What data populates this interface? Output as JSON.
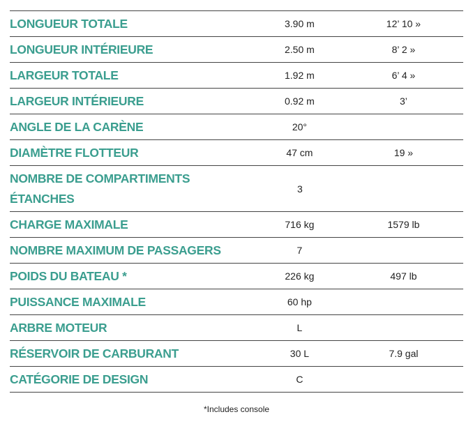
{
  "rows": [
    {
      "label": "LONGUEUR TOTALE",
      "metric": "3.90 m",
      "imperial": "12’ 10 »"
    },
    {
      "label": "LONGUEUR INTÉRIEURE",
      "metric": "2.50 m",
      "imperial": "8’ 2 »"
    },
    {
      "label": "LARGEUR TOTALE",
      "metric": "1.92 m",
      "imperial": "6’ 4 »"
    },
    {
      "label": "LARGEUR INTÉRIEURE",
      "metric": "0.92 m",
      "imperial": "3’"
    },
    {
      "label": "ANGLE DE LA CARÈNE",
      "metric": "20°",
      "imperial": ""
    },
    {
      "label": "DIAMÈTRE FLOTTEUR",
      "metric": "47 cm",
      "imperial": "19 »"
    },
    {
      "label": "NOMBRE DE COMPARTIMENTS ÉTANCHES",
      "metric": "3",
      "imperial": ""
    },
    {
      "label": "CHARGE MAXIMALE",
      "metric": "716 kg",
      "imperial": "1579 lb"
    },
    {
      "label": "NOMBRE MAXIMUM DE PASSAGERS",
      "metric": "7",
      "imperial": ""
    },
    {
      "label": "POIDS DU BATEAU *",
      "metric": "226 kg",
      "imperial": "497 lb"
    },
    {
      "label": "PUISSANCE MAXIMALE",
      "metric": "60 hp",
      "imperial": ""
    },
    {
      "label": "ARBRE MOTEUR",
      "metric": "L",
      "imperial": ""
    },
    {
      "label": "RÉSERVOIR DE CARBURANT",
      "metric": "30 L",
      "imperial": "7.9 gal"
    },
    {
      "label": "CATÉGORIE DE DESIGN",
      "metric": "C",
      "imperial": ""
    }
  ],
  "footnote": "*Includes console",
  "colors": {
    "label": "#3b9e8f"
  }
}
